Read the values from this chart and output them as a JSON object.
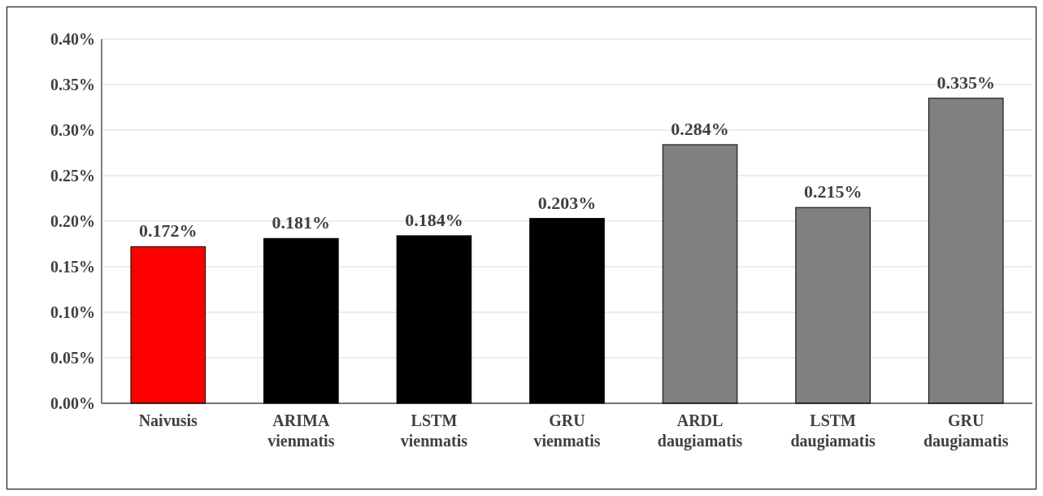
{
  "chart_data": {
    "type": "bar",
    "categories": [
      "Naivusis",
      "ARIMA vienmatis",
      "LSTM vienmatis",
      "GRU vienmatis",
      "ARDL daugiamatis",
      "LSTM daugiamatis",
      "GRU daugiamatis"
    ],
    "values": [
      0.172,
      0.181,
      0.184,
      0.203,
      0.284,
      0.215,
      0.335
    ],
    "colors": [
      "#ff0000",
      "#000000",
      "#000000",
      "#000000",
      "#808080",
      "#808080",
      "#808080"
    ],
    "value_labels": [
      "0.172%",
      "0.181%",
      "0.184%",
      "0.203%",
      "0.284%",
      "0.215%",
      "0.335%"
    ],
    "ylim": [
      0,
      0.4
    ],
    "yticks": [
      {
        "value": 0,
        "label": "0.00%"
      },
      {
        "value": 0.05,
        "label": "0.05%"
      },
      {
        "value": 0.1,
        "label": "0.10%"
      },
      {
        "value": 0.15,
        "label": "0.15%"
      },
      {
        "value": 0.2,
        "label": "0.20%"
      },
      {
        "value": 0.25,
        "label": "0.25%"
      },
      {
        "value": 0.3,
        "label": "0.30%"
      },
      {
        "value": 0.35,
        "label": "0.35%"
      },
      {
        "value": 0.4,
        "label": "0.40%"
      }
    ],
    "grid": true
  }
}
